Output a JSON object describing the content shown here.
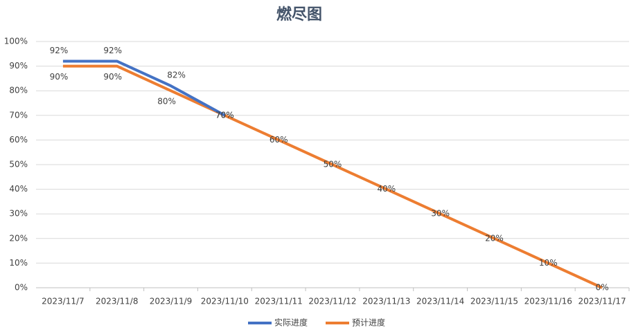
{
  "chart_data": {
    "type": "line",
    "title": "燃尽图",
    "categories": [
      "2023/11/7",
      "2023/11/8",
      "2023/11/9",
      "2023/11/10",
      "2023/11/11",
      "2023/11/12",
      "2023/11/13",
      "2023/11/14",
      "2023/11/15",
      "2023/11/16",
      "2023/11/17"
    ],
    "series": [
      {
        "name": "实际进度",
        "color": "#4472c4",
        "values": [
          92,
          92,
          82,
          70,
          null,
          null,
          null,
          null,
          null,
          null,
          null
        ],
        "value_labels": [
          "92%",
          "92%",
          "82%",
          "70%",
          null,
          null,
          null,
          null,
          null,
          null,
          null
        ]
      },
      {
        "name": "预计进度",
        "color": "#ed7d31",
        "values": [
          90,
          90,
          80,
          70,
          60,
          50,
          40,
          30,
          20,
          10,
          0
        ],
        "value_labels": [
          "90%",
          "90%",
          "80%",
          "70%",
          "60%",
          "50%",
          "40%",
          "30%",
          "20%",
          "10%",
          "0%"
        ]
      }
    ],
    "ylim": [
      0,
      100
    ],
    "yticks": [
      {
        "value": 0,
        "label": "0%"
      },
      {
        "value": 10,
        "label": "10%"
      },
      {
        "value": 20,
        "label": "20%"
      },
      {
        "value": 30,
        "label": "30%"
      },
      {
        "value": 40,
        "label": "40%"
      },
      {
        "value": 50,
        "label": "50%"
      },
      {
        "value": 60,
        "label": "60%"
      },
      {
        "value": 70,
        "label": "70%"
      },
      {
        "value": 80,
        "label": "80%"
      },
      {
        "value": 90,
        "label": "90%"
      },
      {
        "value": 100,
        "label": "100%"
      }
    ],
    "grid": true,
    "legend": "bottom"
  }
}
